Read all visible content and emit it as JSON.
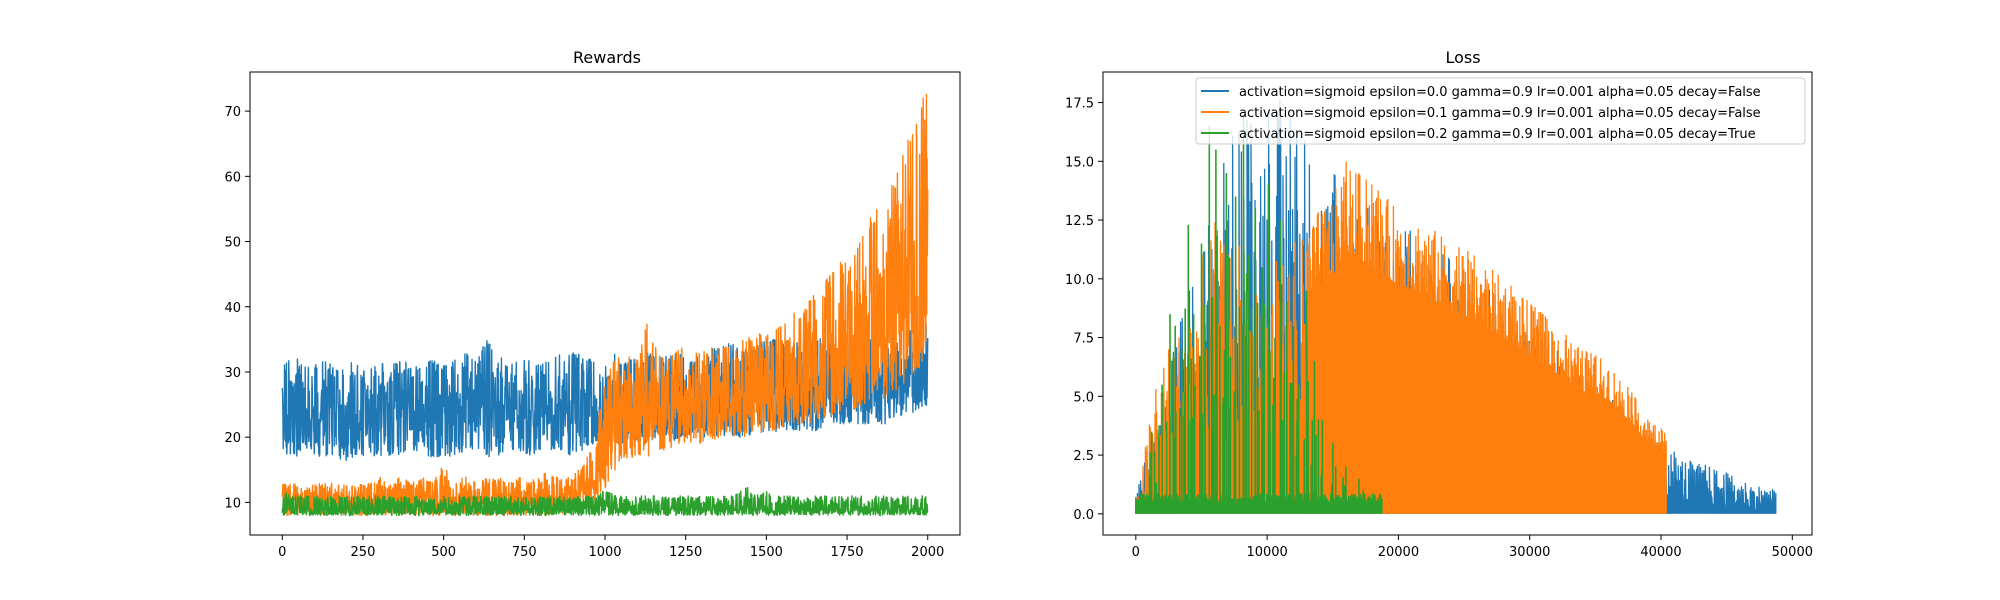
{
  "chart_data": [
    {
      "type": "line",
      "title": "Rewards",
      "xlabel": "",
      "ylabel": "",
      "xlim": [
        -100,
        2100
      ],
      "ylim": [
        5,
        76
      ],
      "xticks": [
        0,
        250,
        500,
        750,
        1000,
        1250,
        1500,
        1750,
        2000
      ],
      "yticks": [
        10,
        20,
        30,
        40,
        50,
        60,
        70
      ],
      "grid": false,
      "series": [
        {
          "color": "#1f77b4",
          "x_range": [
            0,
            2000
          ],
          "values": [
            24,
            23,
            25,
            22,
            26,
            24,
            23,
            25,
            24,
            23,
            25,
            24,
            24,
            23,
            25,
            24,
            23,
            24,
            25,
            24,
            24,
            23,
            25,
            24,
            24,
            24,
            25,
            23,
            24,
            24,
            24,
            25,
            24,
            23,
            25,
            24,
            24,
            24,
            25,
            24,
            25,
            25,
            26,
            26,
            27,
            26,
            27,
            27,
            28,
            27,
            27,
            28,
            28,
            27,
            28,
            29,
            28,
            29,
            30,
            29,
            30
          ],
          "lower": [
            17,
            17,
            16,
            17,
            17,
            17,
            16,
            17,
            17,
            17,
            17,
            17,
            18,
            17,
            17,
            17,
            17,
            18,
            18,
            17,
            17,
            18,
            18,
            17,
            18,
            18,
            18,
            17,
            18,
            19,
            19,
            19,
            19,
            19,
            19,
            20,
            19,
            20,
            20,
            20,
            20,
            20,
            20,
            20,
            20,
            20,
            21,
            21,
            21,
            21,
            21,
            22,
            22,
            22,
            22,
            22,
            22,
            23,
            23,
            24,
            25
          ],
          "upper": [
            31,
            33,
            31,
            31,
            32,
            31,
            32,
            31,
            31,
            32,
            31,
            32,
            31,
            31,
            32,
            31,
            32,
            33,
            32,
            35,
            33,
            31,
            32,
            32,
            31,
            32,
            33,
            34,
            32,
            32,
            31,
            33,
            32,
            32,
            33,
            32,
            33,
            33,
            32,
            33,
            34,
            34,
            35,
            33,
            34,
            35,
            35,
            34,
            35,
            35,
            36,
            35,
            34,
            35,
            36,
            35,
            35,
            36,
            36,
            37,
            38
          ]
        },
        {
          "color": "#ff7f0e",
          "x_range": [
            0,
            2000
          ],
          "values": [
            10,
            10,
            10,
            10,
            10,
            10,
            10,
            10,
            10,
            10,
            10,
            10,
            10,
            10,
            10,
            10,
            10,
            10,
            10,
            10,
            10,
            10,
            10,
            10,
            10,
            10,
            11,
            11,
            12,
            15,
            20,
            23,
            24,
            24,
            24,
            25,
            25,
            25,
            26,
            26,
            26,
            26,
            26,
            27,
            27,
            27,
            28,
            28,
            29,
            29,
            30,
            31,
            32,
            33,
            35,
            36,
            37,
            38,
            40,
            42,
            45
          ],
          "lower": [
            8,
            8,
            8,
            8,
            8,
            8,
            8,
            8,
            8,
            8,
            8,
            8,
            8,
            8,
            8,
            8,
            8,
            8,
            8,
            8,
            8,
            8,
            8,
            8,
            8,
            8,
            8,
            9,
            9,
            10,
            12,
            15,
            16,
            17,
            17,
            18,
            18,
            19,
            19,
            19,
            19,
            20,
            20,
            20,
            20,
            21,
            21,
            22,
            22,
            22,
            23,
            23,
            24,
            24,
            25,
            25,
            26,
            27,
            28,
            30,
            33
          ],
          "upper": [
            13,
            13,
            12,
            13,
            13,
            13,
            13,
            13,
            13,
            14,
            13,
            14,
            13,
            14,
            13,
            16,
            13,
            14,
            13,
            14,
            14,
            13,
            14,
            13,
            15,
            14,
            14,
            14,
            16,
            20,
            28,
            33,
            33,
            32,
            38,
            33,
            32,
            34,
            33,
            33,
            34,
            34,
            34,
            35,
            36,
            36,
            37,
            38,
            40,
            41,
            43,
            45,
            47,
            47,
            52,
            55,
            57,
            60,
            65,
            71,
            73
          ]
        },
        {
          "color": "#2ca02c",
          "x_range": [
            0,
            2000
          ],
          "values": [
            9,
            9,
            9,
            9,
            9,
            9,
            9,
            9,
            9,
            9,
            9,
            9,
            9,
            9,
            9,
            9,
            9,
            9,
            9,
            9,
            9,
            9,
            9,
            9,
            9,
            9,
            9,
            9,
            9,
            9,
            9,
            9,
            9,
            9,
            9,
            9,
            9,
            9,
            9,
            9,
            9,
            9,
            9,
            9,
            9,
            9,
            9,
            9,
            9,
            9,
            9,
            9,
            9,
            9,
            9,
            9,
            9,
            9,
            9,
            9,
            9
          ],
          "lower": [
            8,
            8,
            8,
            8,
            8,
            8,
            8,
            8,
            8,
            8,
            8,
            8,
            8,
            8,
            8,
            8,
            8,
            8,
            8,
            8,
            8,
            8,
            8,
            8,
            8,
            8,
            8,
            8,
            8,
            8,
            8,
            8,
            8,
            8,
            8,
            8,
            8,
            8,
            8,
            8,
            8,
            8,
            8,
            8,
            8,
            8,
            8,
            8,
            8,
            8,
            8,
            8,
            8,
            8,
            8,
            8,
            8,
            8,
            8,
            8,
            8
          ],
          "upper": [
            12,
            11,
            11,
            11,
            11,
            11,
            11,
            11,
            11,
            11,
            11,
            11,
            11,
            11,
            11,
            11,
            11,
            11,
            11,
            11,
            11,
            11,
            11,
            11,
            11,
            11,
            11,
            11,
            11,
            11,
            12,
            11,
            11,
            11,
            11,
            11,
            11,
            11,
            11,
            11,
            11,
            11,
            11,
            13,
            11,
            12,
            11,
            11,
            11,
            11,
            11,
            11,
            11,
            11,
            11,
            11,
            11,
            11,
            11,
            11,
            11
          ]
        }
      ]
    },
    {
      "type": "line",
      "title": "Loss",
      "xlabel": "",
      "ylabel": "",
      "xlim": [
        -2500,
        51500
      ],
      "ylim": [
        -0.9,
        18.8
      ],
      "xticks": [
        0,
        10000,
        20000,
        30000,
        40000,
        50000
      ],
      "yticks": [
        0.0,
        2.5,
        5.0,
        7.5,
        10.0,
        12.5,
        15.0,
        17.5
      ],
      "ytick_labels": [
        "0.0",
        "2.5",
        "5.0",
        "7.5",
        "10.0",
        "12.5",
        "15.0",
        "17.5"
      ],
      "grid": false,
      "legend": {
        "position": "top-right",
        "entries": [
          {
            "label": "activation=sigmoid epsilon=0.0 gamma=0.9 lr=0.001 alpha=0.05 decay=False",
            "color": "#1f77b4"
          },
          {
            "label": "activation=sigmoid epsilon=0.1 gamma=0.9 lr=0.001 alpha=0.05 decay=False",
            "color": "#ff7f0e"
          },
          {
            "label": "activation=sigmoid epsilon=0.2 gamma=0.9 lr=0.001 alpha=0.05 decay=True",
            "color": "#2ca02c"
          }
        ]
      },
      "series": [
        {
          "color": "#1f77b4",
          "x_range": [
            0,
            48800
          ],
          "upper_envelope": [
            [
              0,
              1.0
            ],
            [
              1000,
              3.0
            ],
            [
              2000,
              5.0
            ],
            [
              3000,
              7.5
            ],
            [
              4000,
              9.5
            ],
            [
              5000,
              11.5
            ],
            [
              6000,
              14.0
            ],
            [
              7000,
              16.0
            ],
            [
              8000,
              17.0
            ],
            [
              9000,
              16.5
            ],
            [
              10000,
              17.0
            ],
            [
              11000,
              17.8
            ],
            [
              12000,
              16.5
            ],
            [
              13000,
              15.8
            ],
            [
              14000,
              15.0
            ],
            [
              15000,
              14.5
            ],
            [
              16000,
              14.0
            ],
            [
              17000,
              13.5
            ],
            [
              18000,
              13.0
            ],
            [
              20000,
              12.5
            ],
            [
              22000,
              11.5
            ],
            [
              24000,
              11.0
            ],
            [
              26000,
              10.0
            ],
            [
              28000,
              9.0
            ],
            [
              30000,
              8.0
            ],
            [
              32000,
              7.0
            ],
            [
              34000,
              6.0
            ],
            [
              36000,
              5.0
            ],
            [
              38000,
              4.0
            ],
            [
              40000,
              3.0
            ],
            [
              42000,
              2.3
            ],
            [
              44000,
              2.0
            ],
            [
              46000,
              1.5
            ],
            [
              48800,
              1.0
            ]
          ],
          "lower_envelope": [
            [
              0,
              0.0
            ],
            [
              48800,
              0.0
            ]
          ]
        },
        {
          "color": "#ff7f0e",
          "x_range": [
            0,
            40400
          ],
          "upper_envelope": [
            [
              0,
              0.5
            ],
            [
              500,
              2.0
            ],
            [
              1000,
              4.0
            ],
            [
              2000,
              6.5
            ],
            [
              3000,
              7.5
            ],
            [
              4000,
              9.0
            ],
            [
              5000,
              11.0
            ],
            [
              6000,
              12.5
            ],
            [
              7000,
              11.0
            ],
            [
              8000,
              12.5
            ],
            [
              9000,
              9.0
            ],
            [
              10000,
              10.5
            ],
            [
              11000,
              11.0
            ],
            [
              12000,
              11.5
            ],
            [
              13000,
              12.0
            ],
            [
              14000,
              13.0
            ],
            [
              15000,
              13.5
            ],
            [
              16000,
              15.0
            ],
            [
              17000,
              14.5
            ],
            [
              18000,
              14.0
            ],
            [
              19000,
              13.5
            ],
            [
              20000,
              13.0
            ],
            [
              22000,
              12.5
            ],
            [
              24000,
              11.5
            ],
            [
              26000,
              11.0
            ],
            [
              28000,
              10.0
            ],
            [
              30000,
              9.0
            ],
            [
              32000,
              8.0
            ],
            [
              34000,
              7.0
            ],
            [
              36000,
              6.5
            ],
            [
              38000,
              5.0
            ],
            [
              39000,
              4.0
            ],
            [
              40400,
              3.5
            ]
          ],
          "lower_envelope": [
            [
              0,
              0.0
            ],
            [
              40400,
              0.0
            ]
          ],
          "solid_fill_from": 13000
        },
        {
          "color": "#2ca02c",
          "x_range": [
            0,
            18800
          ],
          "band_top": 0.8,
          "spikes": [
            [
              1200,
              3.5
            ],
            [
              2000,
              5.5
            ],
            [
              2600,
              8.5
            ],
            [
              3000,
              8.0
            ],
            [
              3500,
              7.0
            ],
            [
              4000,
              12.3
            ],
            [
              4400,
              8.5
            ],
            [
              5000,
              11.5
            ],
            [
              5600,
              16.5
            ],
            [
              6100,
              15.5
            ],
            [
              6400,
              8.0
            ],
            [
              6900,
              14.5
            ],
            [
              7600,
              13.5
            ],
            [
              8200,
              17.0
            ],
            [
              8600,
              11.0
            ],
            [
              9100,
              13.0
            ],
            [
              9600,
              10.5
            ],
            [
              10100,
              14.0
            ],
            [
              10600,
              7.5
            ],
            [
              11000,
              12.5
            ],
            [
              11500,
              9.0
            ],
            [
              12000,
              8.0
            ],
            [
              12400,
              5.5
            ],
            [
              13000,
              9.5
            ],
            [
              13600,
              6.5
            ],
            [
              14200,
              4.0
            ],
            [
              15000,
              3.0
            ],
            [
              16000,
              2.0
            ],
            [
              17000,
              1.5
            ]
          ]
        }
      ]
    }
  ]
}
